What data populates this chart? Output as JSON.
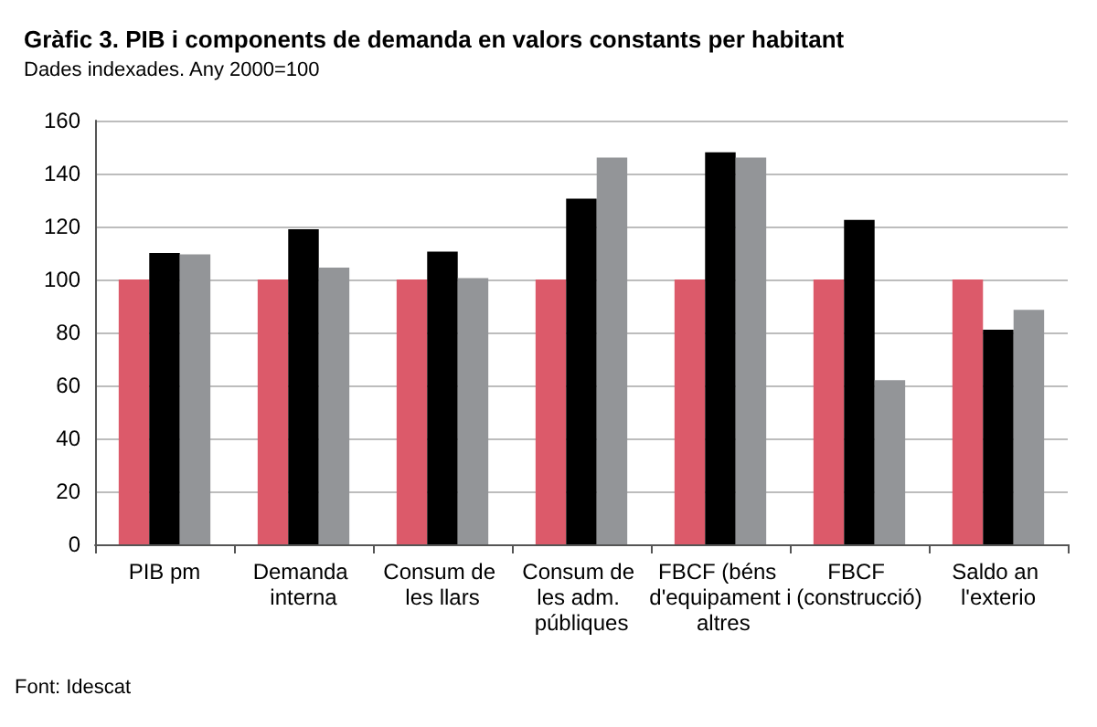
{
  "chart_data": {
    "type": "bar",
    "title": "Gràfic 3. PIB i components de demanda en valors constants per habitant",
    "subtitle": "Dades indexades. Any 2000=100",
    "categories": [
      "PIB pm",
      "Demanda interna",
      "Consum de les llars",
      "Consum de les adm. públiques",
      "FBCF (béns d'equipament i altres",
      "FBCF (construcció)",
      "Saldo an l'exterio"
    ],
    "series": [
      {
        "color": "#dc5a6a",
        "values": [
          100,
          100,
          100,
          100,
          100,
          100,
          100
        ]
      },
      {
        "color": "#000000",
        "values": [
          110,
          119,
          110.5,
          130.5,
          148,
          122.5,
          81
        ]
      },
      {
        "color": "#939598",
        "values": [
          109.5,
          104.5,
          100.5,
          146,
          146,
          62,
          88.5
        ]
      }
    ],
    "ylim": [
      0,
      160
    ],
    "yticks": [
      0,
      20,
      40,
      60,
      80,
      100,
      120,
      140,
      160
    ],
    "grid": "y",
    "annotations": [
      "Font: Idescat"
    ]
  }
}
